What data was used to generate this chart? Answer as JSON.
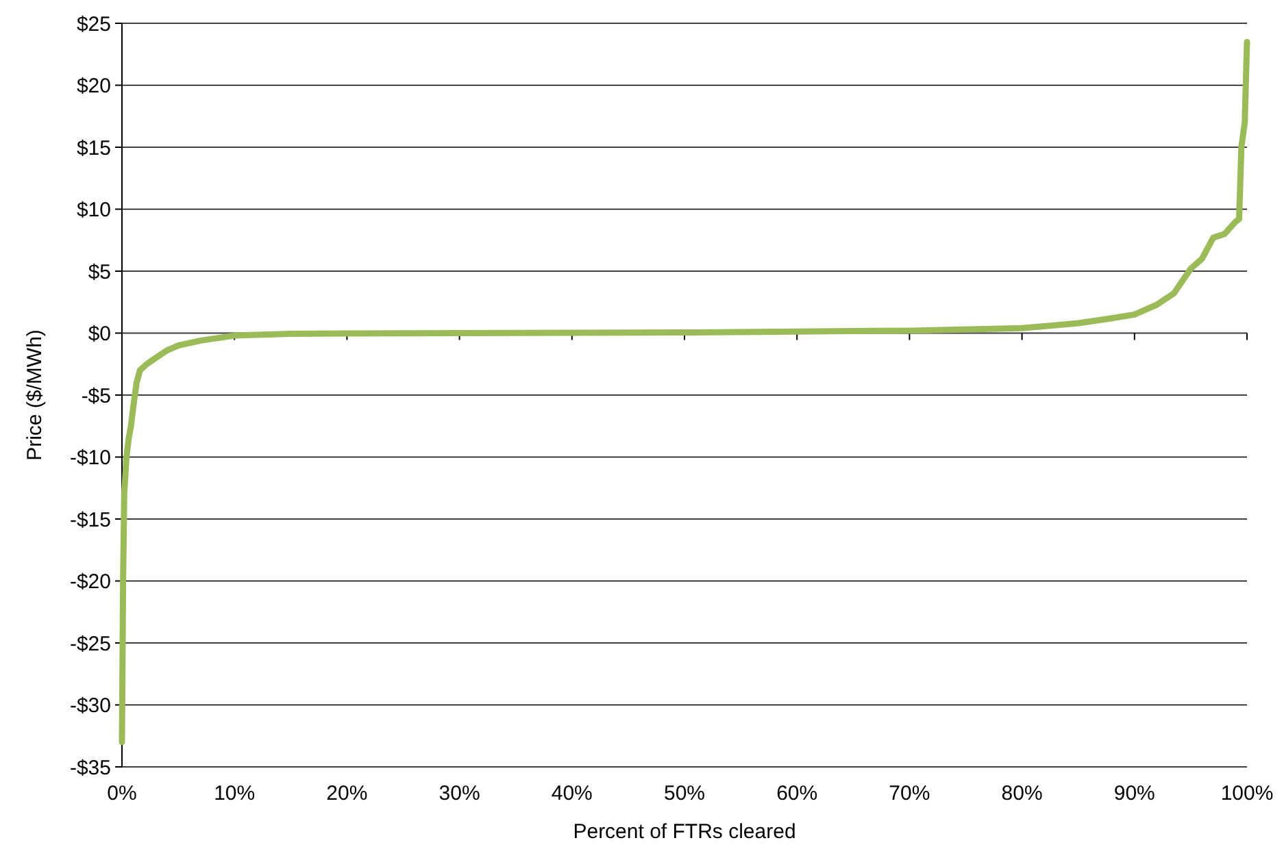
{
  "chart_data": {
    "type": "line",
    "xlabel": "Percent of FTRs cleared",
    "ylabel": "Price ($/MWh)",
    "x": [
      0,
      0.1,
      0.2,
      0.4,
      0.6,
      0.8,
      1.0,
      1.3,
      1.6,
      2.2,
      3,
      4,
      5,
      7,
      10,
      15,
      30,
      50,
      70,
      80,
      85,
      88,
      90,
      92,
      93.5,
      95,
      96,
      97,
      98,
      99,
      99.3,
      99.5,
      99.8,
      100
    ],
    "series": [
      {
        "color": "#9bbb59",
        "values": [
          -33,
          -20,
          -13,
          -10,
          -8.5,
          -7.5,
          -6,
          -4,
          -3,
          -2.5,
          -2,
          -1.4,
          -1,
          -0.6,
          -0.2,
          -0.05,
          0,
          0.05,
          0.2,
          0.4,
          0.8,
          1.2,
          1.5,
          2.3,
          3.2,
          5.2,
          6,
          7.7,
          8,
          9,
          9.2,
          15,
          17,
          23.5
        ]
      }
    ],
    "xlim": [
      0,
      100
    ],
    "xticks": [
      {
        "value": 0,
        "label": "0%"
      },
      {
        "value": 10,
        "label": "10%"
      },
      {
        "value": 20,
        "label": "20%"
      },
      {
        "value": 30,
        "label": "30%"
      },
      {
        "value": 40,
        "label": "40%"
      },
      {
        "value": 50,
        "label": "50%"
      },
      {
        "value": 60,
        "label": "60%"
      },
      {
        "value": 70,
        "label": "70%"
      },
      {
        "value": 80,
        "label": "80%"
      },
      {
        "value": 90,
        "label": "90%"
      },
      {
        "value": 100,
        "label": "100%"
      }
    ],
    "ylim": [
      -35,
      25
    ],
    "yticks": [
      {
        "value": -35,
        "label": "-$35"
      },
      {
        "value": -30,
        "label": "-$30"
      },
      {
        "value": -25,
        "label": "-$25"
      },
      {
        "value": -20,
        "label": "-$20"
      },
      {
        "value": -15,
        "label": "-$15"
      },
      {
        "value": -10,
        "label": "-$10"
      },
      {
        "value": -5,
        "label": "-$5"
      },
      {
        "value": 0,
        "label": "$0"
      },
      {
        "value": 5,
        "label": "$5"
      },
      {
        "value": 10,
        "label": "$10"
      },
      {
        "value": 15,
        "label": "$15"
      },
      {
        "value": 20,
        "label": "$20"
      },
      {
        "value": 25,
        "label": "$25"
      }
    ],
    "grid": "y",
    "marker": "none",
    "line_style": "solid"
  }
}
